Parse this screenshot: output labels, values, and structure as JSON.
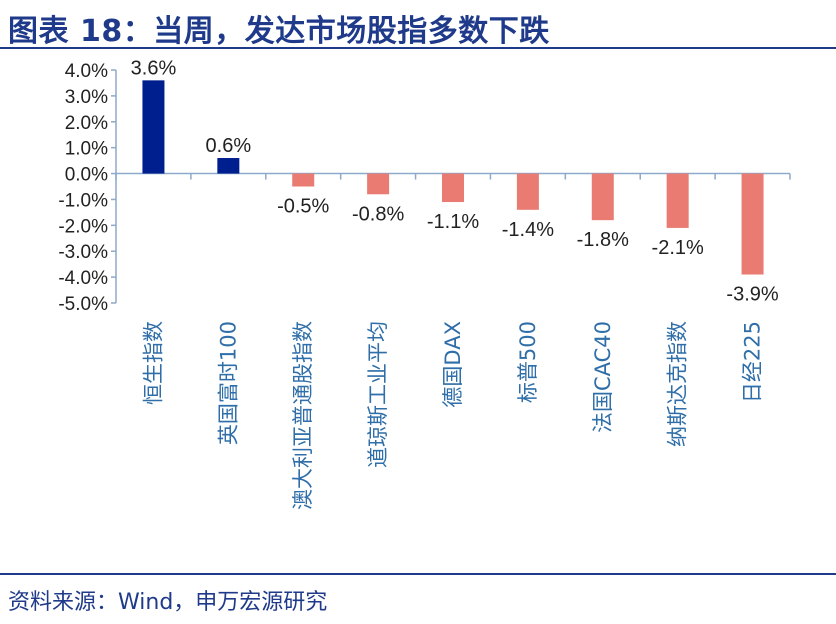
{
  "header": {
    "title": "图表 18：当周，发达市场股指多数下跌"
  },
  "footer": {
    "source": "资料来源：Wind，申万宏源研究"
  },
  "colors": {
    "positive": "#001f8e",
    "negative": "#e97b73",
    "axis": "#8ea9c9",
    "text": "#222222",
    "category_text": "#2f6ea8",
    "title": "#1f3a8a"
  },
  "chart_data": {
    "type": "bar",
    "title": "",
    "xlabel": "",
    "ylabel": "",
    "categories": [
      "恒生指数",
      "英国富时100",
      "澳大利亚普通股指数",
      "道琼斯工业平均",
      "德国DAX",
      "标普500",
      "法国CAC40",
      "纳斯达克指数",
      "日经225"
    ],
    "values": [
      3.6,
      0.6,
      -0.5,
      -0.8,
      -1.1,
      -1.4,
      -1.8,
      -2.1,
      -3.9
    ],
    "value_labels": [
      "3.6%",
      "0.6%",
      "-0.5%",
      "-0.8%",
      "-1.1%",
      "-1.4%",
      "-1.8%",
      "-2.1%",
      "-3.9%"
    ],
    "ylim": [
      -5.0,
      4.0
    ],
    "yticks": [
      "4.0%",
      "3.0%",
      "2.0%",
      "1.0%",
      "0.0%",
      "-1.0%",
      "-2.0%",
      "-3.0%",
      "-4.0%",
      "-5.0%"
    ],
    "ytick_values": [
      4,
      3,
      2,
      1,
      0,
      -1,
      -2,
      -3,
      -4,
      -5
    ],
    "grid": false,
    "legend": "none"
  }
}
